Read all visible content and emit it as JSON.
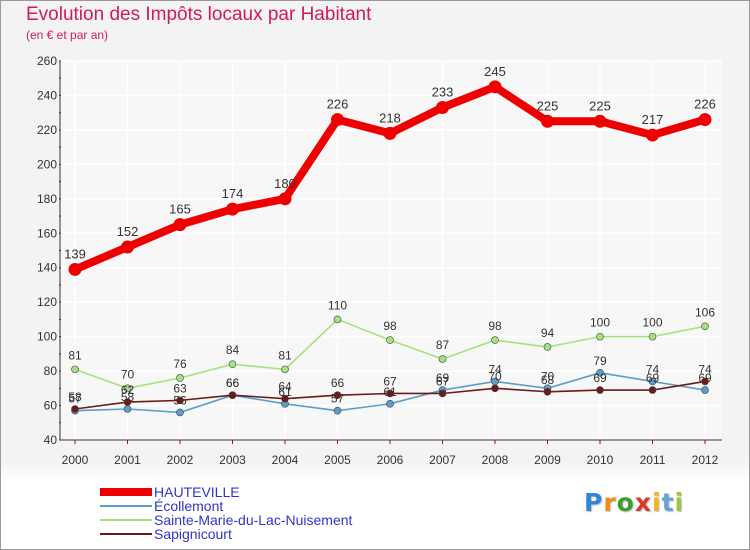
{
  "title": "Evolution des Impôts locaux par Habitant",
  "subtitle": "(en € et par an)",
  "logo": {
    "letters": [
      "P",
      "r",
      "o",
      "x",
      "i",
      "t",
      "i"
    ],
    "colors": [
      "#2f86d6",
      "#f28c1e",
      "#3a9e2e",
      "#d83a2a",
      "#f2b51e",
      "#6aa2d8",
      "#9bc83a"
    ]
  },
  "chart_data": {
    "type": "line",
    "xlabel": "",
    "ylabel": "",
    "ylim": [
      40,
      260
    ],
    "yticks": [
      40,
      60,
      80,
      100,
      120,
      140,
      160,
      180,
      200,
      220,
      240,
      260
    ],
    "grid": true,
    "legend_position": "bottom-left",
    "x": [
      "2000",
      "2001",
      "2002",
      "2003",
      "2004",
      "2005",
      "2006",
      "2007",
      "2008",
      "2009",
      "2010",
      "2011",
      "2012"
    ],
    "series": [
      {
        "name": "HAUTEVILLE",
        "color": "#ee0000",
        "values": [
          139,
          152,
          165,
          174,
          180,
          226,
          218,
          233,
          245,
          225,
          225,
          217,
          226
        ],
        "labels": [
          "139",
          "152",
          "165",
          "174",
          "180",
          "226",
          "218",
          "233",
          "245",
          "225",
          "225",
          "217",
          "226"
        ]
      },
      {
        "name": "Écollemont",
        "color": "#5b9ecb",
        "values": [
          57,
          58,
          56,
          66,
          61,
          57,
          61,
          69,
          74,
          70,
          79,
          74,
          69
        ],
        "labels": [
          "57",
          "58",
          "56",
          "66",
          "61",
          "57",
          "61",
          "69",
          "74",
          "70",
          "79",
          "74",
          "69"
        ]
      },
      {
        "name": "Sainte-Marie-du-Lac-Nuisement",
        "color": "#a3e37e",
        "values": [
          81,
          70,
          76,
          84,
          81,
          110,
          98,
          87,
          98,
          94,
          100,
          100,
          106
        ],
        "labels": [
          "81",
          "70",
          "76",
          "84",
          "81",
          "110",
          "98",
          "87",
          "98",
          "94",
          "100",
          "100",
          "106"
        ]
      },
      {
        "name": "Sapignicourt",
        "color": "#6d1a1a",
        "values": [
          58,
          62,
          63,
          66,
          64,
          66,
          67,
          67,
          70,
          68,
          69,
          69,
          74
        ],
        "labels": [
          "58",
          "62",
          "63",
          "66",
          "64",
          "66",
          "67",
          "67",
          "70",
          "68",
          "69",
          "69",
          "74"
        ]
      }
    ]
  }
}
